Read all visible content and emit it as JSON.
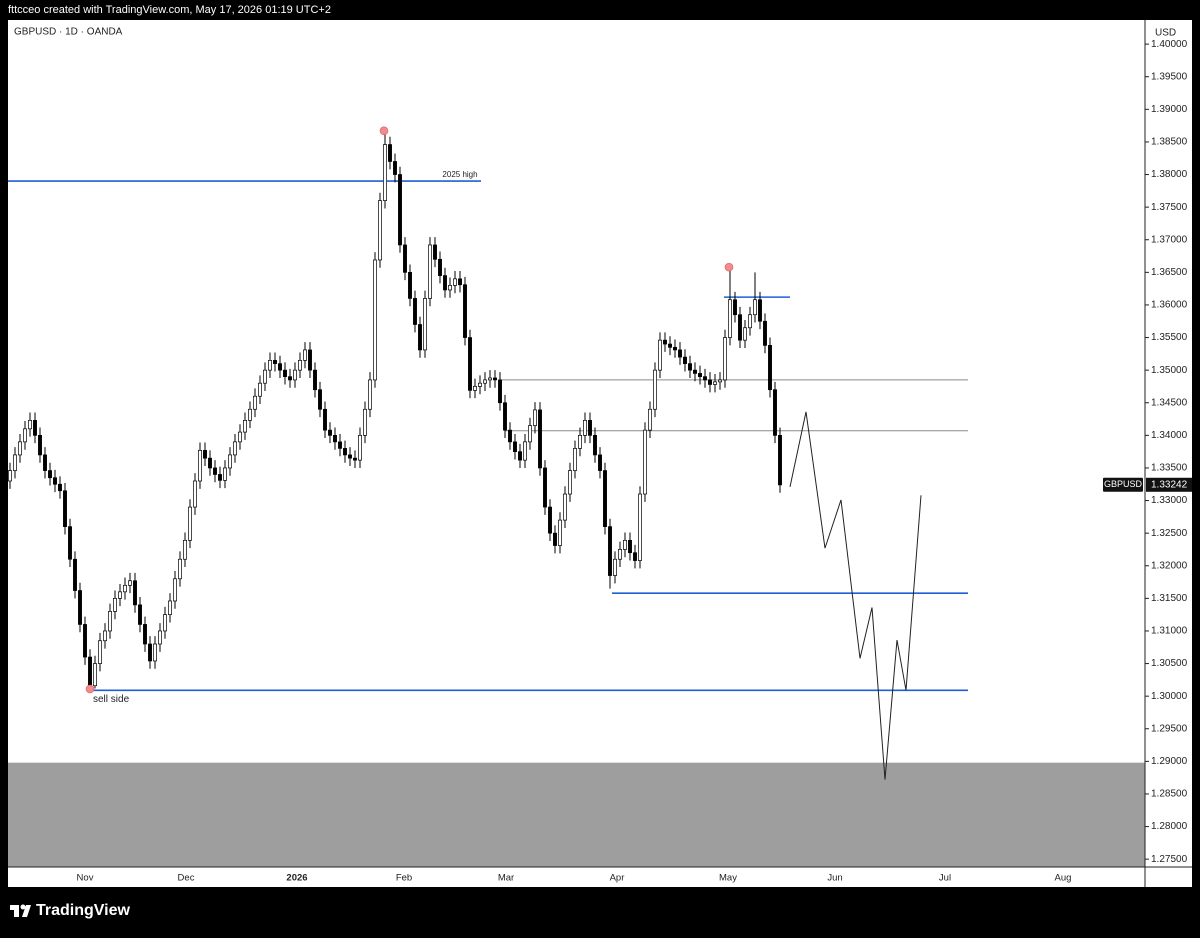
{
  "header": "fttcceo created with TradingView.com, May 17, 2026 01:19 UTC+2",
  "footer": "TradingView",
  "chart_data": {
    "type": "candlestick",
    "title": "GBPUSD · 1D · OANDA",
    "currency": "USD",
    "symbol": "GBPUSD",
    "last_price": 1.33242,
    "up_color": "#ffffff",
    "down_color": "#000000",
    "ylim": [
      1.2738,
      1.4037
    ],
    "yticks": [
      {
        "value": 1.275,
        "label": "1.27500"
      },
      {
        "value": 1.28,
        "label": "1.28000"
      },
      {
        "value": 1.285,
        "label": "1.28500"
      },
      {
        "value": 1.29,
        "label": "1.29000"
      },
      {
        "value": 1.295,
        "label": "1.29500"
      },
      {
        "value": 1.3,
        "label": "1.30000"
      },
      {
        "value": 1.305,
        "label": "1.30500"
      },
      {
        "value": 1.31,
        "label": "1.31000"
      },
      {
        "value": 1.315,
        "label": "1.31500"
      },
      {
        "value": 1.32,
        "label": "1.32000"
      },
      {
        "value": 1.325,
        "label": "1.32500"
      },
      {
        "value": 1.33,
        "label": "1.33000"
      },
      {
        "value": 1.335,
        "label": "1.33500"
      },
      {
        "value": 1.34,
        "label": "1.34000"
      },
      {
        "value": 1.345,
        "label": "1.34500"
      },
      {
        "value": 1.35,
        "label": "1.35000"
      },
      {
        "value": 1.355,
        "label": "1.35500"
      },
      {
        "value": 1.36,
        "label": "1.36000"
      },
      {
        "value": 1.365,
        "label": "1.36500"
      },
      {
        "value": 1.37,
        "label": "1.37000"
      },
      {
        "value": 1.375,
        "label": "1.37500"
      },
      {
        "value": 1.38,
        "label": "1.38000"
      },
      {
        "value": 1.385,
        "label": "1.38500"
      },
      {
        "value": 1.39,
        "label": "1.39000"
      },
      {
        "value": 1.395,
        "label": "1.39500"
      },
      {
        "value": 1.4,
        "label": "1.40000"
      }
    ],
    "x_labels": [
      "Nov",
      "Dec",
      "2026",
      "Feb",
      "Mar",
      "Apr",
      "May",
      "Jun",
      "Jul",
      "Aug"
    ],
    "open": [
      1.333,
      1.3346,
      1.337,
      1.339,
      1.341,
      1.3423,
      1.34,
      1.337,
      1.3346,
      1.3335,
      1.3325,
      1.3315,
      1.326,
      1.321,
      1.3162,
      1.311,
      1.306,
      1.3016,
      1.305,
      1.3085,
      1.31,
      1.313,
      1.315,
      1.316,
      1.317,
      1.3177,
      1.314,
      1.311,
      1.308,
      1.3054,
      1.308,
      1.31,
      1.3125,
      1.3146,
      1.318,
      1.321,
      1.3239,
      1.329,
      1.333,
      1.3377,
      1.3365,
      1.335,
      1.334,
      1.3331,
      1.335,
      1.337,
      1.339,
      1.3405,
      1.3423,
      1.344,
      1.346,
      1.348,
      1.35,
      1.3515,
      1.351,
      1.35,
      1.349,
      1.3485,
      1.35,
      1.3515,
      1.3531,
      1.35,
      1.347,
      1.344,
      1.3408,
      1.34,
      1.339,
      1.338,
      1.337,
      1.3365,
      1.3362,
      1.34,
      1.344,
      1.3485,
      1.3669,
      1.376,
      1.3846,
      1.382,
      1.38,
      1.3692,
      1.365,
      1.361,
      1.357,
      1.3531,
      1.361,
      1.3692,
      1.367,
      1.3645,
      1.3623,
      1.363,
      1.364,
      1.3631,
      1.355,
      1.3469,
      1.3475,
      1.348,
      1.3485,
      1.3488,
      1.3485,
      1.345,
      1.3408,
      1.339,
      1.3375,
      1.3362,
      1.339,
      1.3415,
      1.3439,
      1.335,
      1.329,
      1.325,
      1.3231,
      1.327,
      1.331,
      1.3346,
      1.338,
      1.34,
      1.3423,
      1.34,
      1.337,
      1.3346,
      1.326,
      1.3185,
      1.321,
      1.3225,
      1.3239,
      1.322,
      1.3208,
      1.331,
      1.3408,
      1.344,
      1.35,
      1.3546,
      1.354,
      1.3535,
      1.3531,
      1.352,
      1.351,
      1.35,
      1.3495,
      1.349,
      1.3485,
      1.3478,
      1.3482,
      1.3485,
      1.355,
      1.3608,
      1.3585,
      1.3546,
      1.3565,
      1.3585,
      1.3608,
      1.3575,
      1.3538,
      1.347,
      1.34
    ],
    "high": [
      1.3358,
      1.3382,
      1.3402,
      1.3422,
      1.3435,
      1.3435,
      1.3412,
      1.3382,
      1.3358,
      1.3347,
      1.3337,
      1.3327,
      1.3272,
      1.3222,
      1.3174,
      1.3122,
      1.3072,
      1.3062,
      1.3097,
      1.3112,
      1.3142,
      1.3162,
      1.3172,
      1.3182,
      1.3189,
      1.3189,
      1.3152,
      1.3122,
      1.3092,
      1.3092,
      1.3112,
      1.3137,
      1.3158,
      1.3192,
      1.3222,
      1.3251,
      1.3302,
      1.3342,
      1.3389,
      1.3389,
      1.3377,
      1.3362,
      1.3352,
      1.3362,
      1.3382,
      1.3402,
      1.3417,
      1.3435,
      1.3452,
      1.3472,
      1.3492,
      1.3512,
      1.3527,
      1.3527,
      1.3522,
      1.3512,
      1.3502,
      1.3512,
      1.3527,
      1.3543,
      1.3543,
      1.3512,
      1.3482,
      1.3452,
      1.342,
      1.3412,
      1.3402,
      1.3392,
      1.3382,
      1.3377,
      1.3412,
      1.3452,
      1.3497,
      1.3681,
      1.3772,
      1.3865,
      1.3858,
      1.3832,
      1.3812,
      1.3704,
      1.3662,
      1.3622,
      1.3582,
      1.3622,
      1.3704,
      1.3704,
      1.3682,
      1.3657,
      1.3642,
      1.3652,
      1.3652,
      1.3643,
      1.3562,
      1.3487,
      1.3492,
      1.3497,
      1.35,
      1.35,
      1.3497,
      1.3462,
      1.342,
      1.3402,
      1.3387,
      1.3402,
      1.3427,
      1.3451,
      1.3451,
      1.3362,
      1.3302,
      1.3262,
      1.3282,
      1.3322,
      1.3358,
      1.3392,
      1.3412,
      1.3435,
      1.3435,
      1.3412,
      1.3382,
      1.3358,
      1.3272,
      1.3222,
      1.3237,
      1.3251,
      1.3251,
      1.3232,
      1.3322,
      1.342,
      1.3452,
      1.3512,
      1.3558,
      1.3558,
      1.3552,
      1.3547,
      1.3543,
      1.3532,
      1.3522,
      1.3512,
      1.3507,
      1.3502,
      1.3497,
      1.3494,
      1.3497,
      1.3562,
      1.3658,
      1.362,
      1.3597,
      1.3577,
      1.3597,
      1.365,
      1.362,
      1.3587,
      1.355,
      1.3482,
      1.3412
    ],
    "low": [
      1.3318,
      1.3334,
      1.3358,
      1.3378,
      1.3398,
      1.3388,
      1.3358,
      1.3334,
      1.3323,
      1.3313,
      1.3303,
      1.3248,
      1.3198,
      1.315,
      1.3098,
      1.3048,
      1.301,
      1.3012,
      1.3038,
      1.3073,
      1.3088,
      1.3118,
      1.3138,
      1.3148,
      1.3158,
      1.3128,
      1.3098,
      1.3068,
      1.3042,
      1.3042,
      1.3068,
      1.3088,
      1.3113,
      1.3134,
      1.3168,
      1.3198,
      1.3227,
      1.3278,
      1.3318,
      1.3353,
      1.3338,
      1.3328,
      1.3319,
      1.3319,
      1.3338,
      1.3358,
      1.3378,
      1.3393,
      1.3411,
      1.3428,
      1.3448,
      1.3468,
      1.3488,
      1.3498,
      1.3488,
      1.3478,
      1.3473,
      1.3473,
      1.3488,
      1.3503,
      1.3488,
      1.3458,
      1.3428,
      1.3396,
      1.3388,
      1.3378,
      1.3368,
      1.3358,
      1.3353,
      1.335,
      1.335,
      1.3388,
      1.3428,
      1.3473,
      1.3657,
      1.3748,
      1.3808,
      1.3788,
      1.368,
      1.3638,
      1.3598,
      1.3558,
      1.3519,
      1.3519,
      1.3598,
      1.3658,
      1.3633,
      1.3611,
      1.3611,
      1.3618,
      1.3619,
      1.3538,
      1.3457,
      1.3457,
      1.3463,
      1.3468,
      1.3473,
      1.3473,
      1.3438,
      1.3396,
      1.3378,
      1.3363,
      1.335,
      1.335,
      1.3378,
      1.3403,
      1.3338,
      1.3278,
      1.3238,
      1.3219,
      1.3219,
      1.3258,
      1.3298,
      1.3334,
      1.3368,
      1.3388,
      1.3388,
      1.3358,
      1.3334,
      1.3248,
      1.3165,
      1.3173,
      1.3198,
      1.3213,
      1.3208,
      1.3196,
      1.3196,
      1.3298,
      1.3396,
      1.3428,
      1.3488,
      1.3528,
      1.3523,
      1.3519,
      1.3508,
      1.3498,
      1.3488,
      1.3483,
      1.3478,
      1.3473,
      1.3466,
      1.3466,
      1.347,
      1.3473,
      1.3538,
      1.3573,
      1.3534,
      1.3534,
      1.3553,
      1.3573,
      1.3563,
      1.3526,
      1.3458,
      1.3388,
      1.3312
    ],
    "close": [
      1.3346,
      1.337,
      1.339,
      1.341,
      1.3423,
      1.34,
      1.337,
      1.3346,
      1.3335,
      1.3325,
      1.3315,
      1.326,
      1.321,
      1.3162,
      1.311,
      1.306,
      1.3016,
      1.305,
      1.3085,
      1.31,
      1.313,
      1.315,
      1.316,
      1.317,
      1.3177,
      1.314,
      1.311,
      1.308,
      1.3054,
      1.308,
      1.31,
      1.3125,
      1.3146,
      1.318,
      1.321,
      1.3239,
      1.329,
      1.333,
      1.3377,
      1.3365,
      1.335,
      1.334,
      1.3331,
      1.335,
      1.337,
      1.339,
      1.3405,
      1.3423,
      1.344,
      1.346,
      1.348,
      1.35,
      1.3515,
      1.351,
      1.35,
      1.349,
      1.3485,
      1.35,
      1.3515,
      1.3531,
      1.35,
      1.347,
      1.344,
      1.3408,
      1.34,
      1.339,
      1.338,
      1.337,
      1.3365,
      1.3362,
      1.34,
      1.344,
      1.3485,
      1.3669,
      1.376,
      1.3846,
      1.382,
      1.38,
      1.3692,
      1.365,
      1.361,
      1.357,
      1.3531,
      1.361,
      1.3692,
      1.367,
      1.3645,
      1.3623,
      1.363,
      1.364,
      1.3631,
      1.355,
      1.3469,
      1.3475,
      1.348,
      1.3485,
      1.3488,
      1.3485,
      1.345,
      1.3408,
      1.339,
      1.3375,
      1.3362,
      1.339,
      1.3415,
      1.3439,
      1.335,
      1.329,
      1.325,
      1.3231,
      1.327,
      1.331,
      1.3346,
      1.338,
      1.34,
      1.3423,
      1.34,
      1.337,
      1.3346,
      1.326,
      1.3185,
      1.321,
      1.3225,
      1.3239,
      1.322,
      1.3208,
      1.331,
      1.3408,
      1.344,
      1.35,
      1.3546,
      1.354,
      1.3535,
      1.3531,
      1.352,
      1.351,
      1.35,
      1.3495,
      1.349,
      1.3485,
      1.3478,
      1.3482,
      1.3485,
      1.355,
      1.3608,
      1.3585,
      1.3546,
      1.3565,
      1.3585,
      1.3608,
      1.3575,
      1.3538,
      1.347,
      1.34,
      1.3324
    ],
    "levels": [
      {
        "value": 1.379,
        "color": "#1f5fd6",
        "label": "2025 high"
      },
      {
        "value": 1.3612,
        "color": "#1f5fd6"
      },
      {
        "value": 1.3485,
        "color": "#8a8a8a"
      },
      {
        "value": 1.3407,
        "color": "#8a8a8a"
      },
      {
        "value": 1.3158,
        "color": "#1f5fd6"
      },
      {
        "value": 1.3009,
        "color": "#1f5fd6",
        "label": "sell side"
      }
    ],
    "zone": [
      1.2738,
      1.2898
    ],
    "zone_color": "#9e9e9e",
    "projection": [
      1.3321,
      1.3436,
      1.3227,
      1.3301,
      1.3058,
      1.3136,
      1.2872,
      1.3086,
      1.3009,
      1.3308
    ],
    "markers": [
      1.3867,
      1.3658,
      1.3011
    ],
    "marker_color": "#f28b8b"
  }
}
